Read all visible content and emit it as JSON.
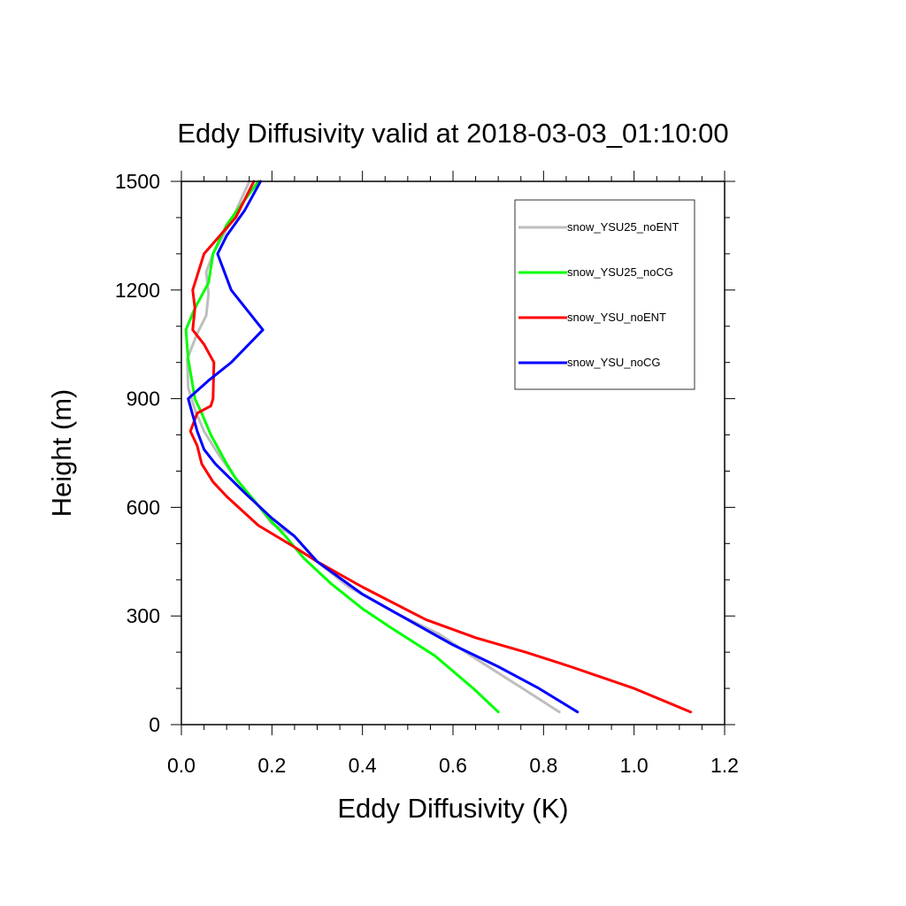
{
  "chart_data": {
    "type": "line",
    "title": "Eddy Diffusivity valid at 2018-03-03_01:10:00",
    "xlabel": "Eddy Diffusivity (K)",
    "ylabel": "Height (m)",
    "xlim": [
      0,
      1.2
    ],
    "ylim": [
      0,
      1500
    ],
    "x_ticks": [
      "0.0",
      "0.2",
      "0.4",
      "0.6",
      "0.8",
      "1.0",
      "1.2"
    ],
    "y_ticks": [
      "0",
      "300",
      "600",
      "900",
      "1200",
      "1500"
    ],
    "legend_position": "top-right",
    "grid": false,
    "series": [
      {
        "name": "snow_YSU25_noENT",
        "color": "#bebebe",
        "points": [
          [
            0.835,
            35
          ],
          [
            0.76,
            95
          ],
          [
            0.64,
            190
          ],
          [
            0.57,
            250
          ],
          [
            0.47,
            310
          ],
          [
            0.37,
            380
          ],
          [
            0.3,
            450
          ],
          [
            0.25,
            520
          ],
          [
            0.2,
            555
          ],
          [
            0.16,
            620
          ],
          [
            0.12,
            680
          ],
          [
            0.08,
            750
          ],
          [
            0.05,
            810
          ],
          [
            0.03,
            870
          ],
          [
            0.015,
            930
          ],
          [
            0.013,
            1010
          ],
          [
            0.035,
            1080
          ],
          [
            0.055,
            1130
          ],
          [
            0.06,
            1190
          ],
          [
            0.055,
            1250
          ],
          [
            0.07,
            1300
          ],
          [
            0.11,
            1390
          ],
          [
            0.15,
            1500
          ]
        ]
      },
      {
        "name": "snow_YSU25_noCG",
        "color": "#00ff00",
        "points": [
          [
            0.7,
            35
          ],
          [
            0.645,
            100
          ],
          [
            0.56,
            190
          ],
          [
            0.46,
            270
          ],
          [
            0.4,
            320
          ],
          [
            0.33,
            390
          ],
          [
            0.27,
            460
          ],
          [
            0.23,
            520
          ],
          [
            0.2,
            560
          ],
          [
            0.16,
            620
          ],
          [
            0.12,
            680
          ],
          [
            0.1,
            720
          ],
          [
            0.065,
            800
          ],
          [
            0.045,
            860
          ],
          [
            0.03,
            900
          ],
          [
            0.015,
            1010
          ],
          [
            0.01,
            1090
          ],
          [
            0.03,
            1150
          ],
          [
            0.06,
            1220
          ],
          [
            0.07,
            1300
          ],
          [
            0.1,
            1380
          ],
          [
            0.17,
            1500
          ]
        ]
      },
      {
        "name": "snow_YSU_noENT",
        "color": "#ff0000",
        "points": [
          [
            1.125,
            35
          ],
          [
            1.0,
            100
          ],
          [
            0.86,
            160
          ],
          [
            0.76,
            200
          ],
          [
            0.65,
            240
          ],
          [
            0.54,
            290
          ],
          [
            0.4,
            380
          ],
          [
            0.3,
            450
          ],
          [
            0.25,
            490
          ],
          [
            0.17,
            550
          ],
          [
            0.1,
            630
          ],
          [
            0.07,
            670
          ],
          [
            0.045,
            720
          ],
          [
            0.035,
            770
          ],
          [
            0.02,
            810
          ],
          [
            0.035,
            860
          ],
          [
            0.065,
            880
          ],
          [
            0.07,
            900
          ],
          [
            0.072,
            1000
          ],
          [
            0.05,
            1050
          ],
          [
            0.025,
            1090
          ],
          [
            0.03,
            1150
          ],
          [
            0.025,
            1200
          ],
          [
            0.05,
            1300
          ],
          [
            0.12,
            1400
          ],
          [
            0.16,
            1500
          ]
        ]
      },
      {
        "name": "snow_YSU_noCG",
        "color": "#0000ff",
        "points": [
          [
            0.875,
            35
          ],
          [
            0.79,
            100
          ],
          [
            0.7,
            160
          ],
          [
            0.6,
            220
          ],
          [
            0.5,
            290
          ],
          [
            0.4,
            360
          ],
          [
            0.3,
            450
          ],
          [
            0.25,
            520
          ],
          [
            0.2,
            570
          ],
          [
            0.14,
            640
          ],
          [
            0.075,
            720
          ],
          [
            0.05,
            760
          ],
          [
            0.035,
            810
          ],
          [
            0.015,
            900
          ],
          [
            0.06,
            950
          ],
          [
            0.11,
            1000
          ],
          [
            0.18,
            1090
          ],
          [
            0.11,
            1200
          ],
          [
            0.08,
            1300
          ],
          [
            0.1,
            1350
          ],
          [
            0.14,
            1420
          ],
          [
            0.175,
            1500
          ]
        ]
      }
    ]
  }
}
